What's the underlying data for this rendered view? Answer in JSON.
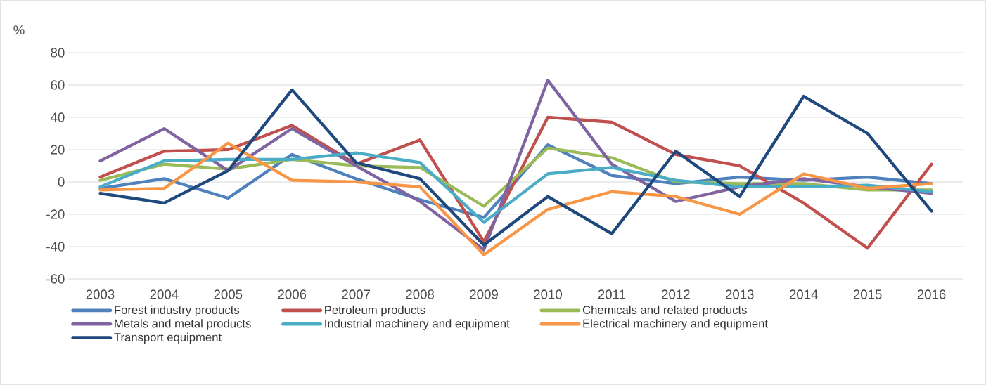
{
  "chart_data": {
    "type": "line",
    "ylabel": "%",
    "categories": [
      "2003",
      "2004",
      "2005",
      "2006",
      "2007",
      "2008",
      "2009",
      "2010",
      "2011",
      "2012",
      "2013",
      "2014",
      "2015",
      "2016"
    ],
    "series": [
      {
        "name": "Forest industry products",
        "color": "#4f81bd",
        "values": [
          -4,
          2,
          -10,
          17,
          2,
          -11,
          -22,
          23,
          4,
          -1,
          3,
          1,
          3,
          -1
        ]
      },
      {
        "name": "Petroleum products",
        "color": "#c0504d",
        "values": [
          3,
          19,
          20,
          35,
          11,
          26,
          -37,
          40,
          37,
          17,
          10,
          -13,
          -41,
          11
        ]
      },
      {
        "name": "Chemicals and related products",
        "color": "#9bbb59",
        "values": [
          1,
          11,
          8,
          14,
          10,
          9,
          -15,
          21,
          15,
          0,
          -1,
          -1,
          -5,
          -5
        ]
      },
      {
        "name": "Metals and metal products",
        "color": "#8064a2",
        "values": [
          13,
          33,
          7,
          33,
          10,
          -12,
          -42,
          63,
          11,
          -12,
          -3,
          2,
          -3,
          -7
        ]
      },
      {
        "name": "Industrial machinery and equipment",
        "color": "#4bacc6",
        "values": [
          -3,
          13,
          14,
          14,
          18,
          12,
          -25,
          5,
          9,
          1,
          -3,
          -3,
          -2,
          -6
        ]
      },
      {
        "name": "Electrical machinery and equipment",
        "color": "#f79646",
        "values": [
          -5,
          -4,
          24,
          1,
          0,
          -3,
          -45,
          -17,
          -6,
          -9,
          -20,
          5,
          -4,
          -1
        ]
      },
      {
        "name": "Transport equipment",
        "color": "#1f497d",
        "values": [
          -7,
          -13,
          7,
          57,
          12,
          2,
          -39,
          -9,
          -32,
          19,
          -9,
          53,
          30,
          -18
        ]
      }
    ],
    "ylim": [
      -60,
      80
    ],
    "yticks": [
      -60,
      -40,
      -20,
      0,
      20,
      40,
      60,
      80
    ],
    "grid": "y",
    "legend": "bottom",
    "marker": "none",
    "line_style": "solid"
  }
}
